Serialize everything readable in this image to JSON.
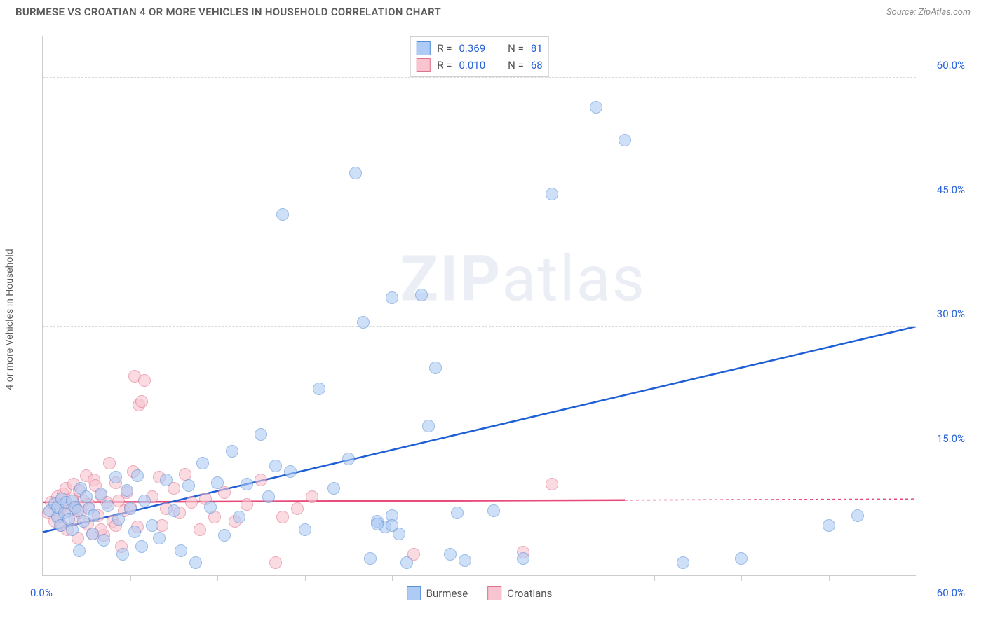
{
  "header": {
    "title": "BURMESE VS CROATIAN 4 OR MORE VEHICLES IN HOUSEHOLD CORRELATION CHART",
    "source_prefix": "Source: ",
    "source_name": "ZipAtlas.com"
  },
  "watermark": {
    "zip": "ZIP",
    "atlas": "atlas"
  },
  "axes": {
    "y_label": "4 or more Vehicles in Household",
    "x_min_label": "0.0%",
    "x_max_label": "60.0%",
    "x_domain": [
      0,
      60
    ],
    "y_domain": [
      0,
      65
    ],
    "y_ticks": [
      {
        "v": 15,
        "label": "15.0%"
      },
      {
        "v": 30,
        "label": "30.0%"
      },
      {
        "v": 45,
        "label": "45.0%"
      },
      {
        "v": 60,
        "label": "60.0%"
      }
    ],
    "extra_gridline_y": 65,
    "x_minor_ticks": [
      6,
      12,
      18,
      24,
      30,
      36,
      42,
      48,
      54
    ]
  },
  "series": {
    "burmese": {
      "label": "Burmese",
      "fill": "#aecbf5",
      "stroke": "#5a8fd6",
      "trend_color": "#1e5fd6",
      "trend_width": 2.5,
      "trend": {
        "x1": 0,
        "y1": 5.2,
        "x2": 60,
        "y2": 30.0
      },
      "marker_r": 9,
      "R_label": "R =",
      "R": "0.369",
      "N_label": "N =",
      "N": "81",
      "points": [
        [
          0.5,
          7.8
        ],
        [
          0.8,
          8.6
        ],
        [
          1.0,
          7.0
        ],
        [
          1.0,
          8.2
        ],
        [
          1.2,
          6.0
        ],
        [
          1.3,
          9.2
        ],
        [
          1.5,
          7.5
        ],
        [
          1.6,
          8.8
        ],
        [
          1.8,
          6.8
        ],
        [
          2.0,
          9.0
        ],
        [
          2.0,
          5.5
        ],
        [
          2.2,
          8.2
        ],
        [
          2.4,
          7.8
        ],
        [
          2.5,
          3.0
        ],
        [
          2.6,
          10.5
        ],
        [
          2.8,
          6.5
        ],
        [
          3.0,
          9.5
        ],
        [
          3.2,
          8.0
        ],
        [
          3.4,
          5.0
        ],
        [
          3.5,
          7.2
        ],
        [
          4.0,
          9.8
        ],
        [
          4.2,
          4.2
        ],
        [
          4.5,
          8.4
        ],
        [
          5.0,
          11.8
        ],
        [
          5.2,
          6.8
        ],
        [
          5.5,
          2.5
        ],
        [
          5.8,
          10.2
        ],
        [
          6.0,
          8.0
        ],
        [
          6.3,
          5.2
        ],
        [
          6.5,
          12.0
        ],
        [
          6.8,
          3.5
        ],
        [
          7.0,
          9.0
        ],
        [
          7.5,
          6.0
        ],
        [
          8.0,
          4.5
        ],
        [
          8.5,
          11.5
        ],
        [
          9.0,
          7.8
        ],
        [
          9.5,
          3.0
        ],
        [
          10.0,
          10.8
        ],
        [
          10.5,
          1.5
        ],
        [
          11.0,
          13.5
        ],
        [
          11.5,
          8.2
        ],
        [
          12.0,
          11.2
        ],
        [
          12.5,
          4.8
        ],
        [
          13.0,
          15.0
        ],
        [
          13.5,
          7.0
        ],
        [
          14.0,
          11.0
        ],
        [
          15.0,
          17.0
        ],
        [
          15.5,
          9.5
        ],
        [
          16.0,
          13.2
        ],
        [
          16.5,
          43.5
        ],
        [
          17.0,
          12.5
        ],
        [
          18.0,
          5.5
        ],
        [
          19.0,
          22.5
        ],
        [
          20.0,
          10.5
        ],
        [
          21.0,
          14.0
        ],
        [
          21.5,
          48.5
        ],
        [
          22.0,
          30.5
        ],
        [
          22.5,
          2.0
        ],
        [
          23.0,
          6.5
        ],
        [
          23.5,
          5.8
        ],
        [
          24.0,
          7.2
        ],
        [
          24.5,
          5.0
        ],
        [
          24.0,
          33.5
        ],
        [
          25.0,
          1.5
        ],
        [
          26.0,
          33.8
        ],
        [
          26.5,
          18.0
        ],
        [
          27.0,
          25.0
        ],
        [
          28.0,
          2.5
        ],
        [
          28.5,
          7.5
        ],
        [
          29.0,
          1.8
        ],
        [
          31.0,
          7.8
        ],
        [
          33.0,
          2.0
        ],
        [
          35.0,
          46.0
        ],
        [
          38.0,
          56.5
        ],
        [
          40.0,
          52.5
        ],
        [
          44.0,
          1.5
        ],
        [
          48.0,
          2.0
        ],
        [
          54.0,
          6.0
        ],
        [
          56.0,
          7.2
        ],
        [
          23.0,
          6.2
        ],
        [
          24.0,
          6.0
        ]
      ]
    },
    "croatians": {
      "label": "Croatians",
      "fill": "#f7c4cf",
      "stroke": "#e0718c",
      "trend_color": "#e84a7a",
      "trend_width": 2.5,
      "trend_solid_until_x": 40,
      "trend": {
        "x1": 0,
        "y1": 8.8,
        "x2": 60,
        "y2": 9.2
      },
      "marker_r": 9,
      "R_label": "R =",
      "R": "0.010",
      "N_label": "N =",
      "N": "68",
      "points": [
        [
          0.4,
          7.5
        ],
        [
          0.6,
          8.8
        ],
        [
          0.8,
          6.5
        ],
        [
          1.0,
          9.5
        ],
        [
          1.1,
          7.0
        ],
        [
          1.2,
          8.0
        ],
        [
          1.3,
          6.0
        ],
        [
          1.4,
          9.8
        ],
        [
          1.5,
          8.5
        ],
        [
          1.6,
          10.5
        ],
        [
          1.7,
          5.5
        ],
        [
          1.8,
          7.8
        ],
        [
          2.0,
          9.2
        ],
        [
          2.1,
          11.0
        ],
        [
          2.2,
          6.8
        ],
        [
          2.3,
          8.0
        ],
        [
          2.4,
          4.5
        ],
        [
          2.5,
          10.2
        ],
        [
          2.6,
          7.5
        ],
        [
          2.8,
          9.0
        ],
        [
          3.0,
          12.0
        ],
        [
          3.1,
          6.2
        ],
        [
          3.2,
          8.5
        ],
        [
          3.4,
          5.0
        ],
        [
          3.5,
          11.5
        ],
        [
          3.6,
          10.8
        ],
        [
          3.8,
          7.2
        ],
        [
          4.0,
          9.6
        ],
        [
          4.2,
          4.8
        ],
        [
          4.4,
          8.8
        ],
        [
          4.6,
          13.5
        ],
        [
          4.8,
          6.5
        ],
        [
          5.0,
          11.2
        ],
        [
          5.2,
          9.0
        ],
        [
          5.4,
          3.5
        ],
        [
          5.6,
          7.8
        ],
        [
          5.8,
          10.0
        ],
        [
          6.0,
          8.2
        ],
        [
          6.2,
          12.5
        ],
        [
          6.3,
          24.0
        ],
        [
          6.5,
          5.8
        ],
        [
          6.6,
          20.5
        ],
        [
          6.8,
          21.0
        ],
        [
          7.0,
          23.5
        ],
        [
          7.5,
          9.5
        ],
        [
          8.0,
          11.8
        ],
        [
          8.2,
          6.0
        ],
        [
          8.5,
          8.0
        ],
        [
          9.0,
          10.5
        ],
        [
          9.4,
          7.5
        ],
        [
          9.8,
          12.2
        ],
        [
          10.2,
          8.8
        ],
        [
          10.8,
          5.5
        ],
        [
          11.2,
          9.2
        ],
        [
          11.8,
          7.0
        ],
        [
          12.5,
          10.0
        ],
        [
          13.2,
          6.5
        ],
        [
          14.0,
          8.5
        ],
        [
          15.0,
          11.5
        ],
        [
          16.0,
          1.5
        ],
        [
          16.5,
          7.0
        ],
        [
          17.5,
          8.0
        ],
        [
          18.5,
          9.5
        ],
        [
          25.5,
          2.5
        ],
        [
          33.0,
          2.8
        ],
        [
          35.0,
          11.0
        ],
        [
          4.0,
          5.5
        ],
        [
          5.0,
          6.0
        ]
      ]
    }
  },
  "style": {
    "background": "#ffffff",
    "grid_color": "#d8d8d8",
    "axis_color": "#cccccc",
    "label_color": "#5a5a5a",
    "value_color": "#2962d9"
  }
}
